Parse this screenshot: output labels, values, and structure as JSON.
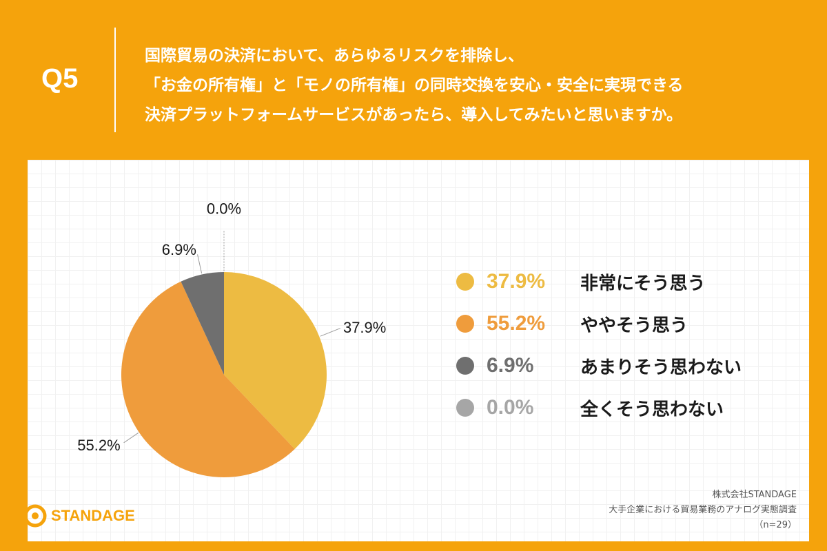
{
  "header": {
    "q_label": "Q5",
    "question_lines": [
      "国際貿易の決済において、あらゆるリスクを排除し、",
      "「お金の所有権」と「モノの所有権」の同時交換を安心・安全に実現できる",
      "決済プラットフォームサービスがあったら、導入してみたいと思いますか。"
    ]
  },
  "chart_data": {
    "type": "pie",
    "title": "国際貿易の決済において、あらゆるリスクを排除し、「お金の所有権」と「モノの所有権」の同時交換を安心・安全に実現できる決済プラットフォームサービスがあったら、導入してみたいと思いますか。",
    "categories": [
      "非常にそう思う",
      "ややそう思う",
      "あまりそう思わない",
      "全くそう思わない"
    ],
    "values": [
      37.9,
      55.2,
      6.9,
      0.0
    ],
    "value_labels": [
      "37.9%",
      "55.2%",
      "6.9%",
      "0.0%"
    ],
    "colors": [
      "#EDBB42",
      "#EF9C3C",
      "#6F6F6F",
      "#A6A6A6"
    ],
    "legend_position": "right",
    "start": "top",
    "direction": "clockwise"
  },
  "colors": {
    "background": "#F5A30C",
    "leader_line": "#9a9a9a",
    "label_text": "#1a1a1a"
  },
  "footer": {
    "company": "株式会社STANDAGE",
    "survey": "大手企業における貿易業務のアナログ実態調査",
    "sample": "（n=29）",
    "logo_text": "STANDAGE",
    "logo_icon": "standage-logo-icon"
  }
}
